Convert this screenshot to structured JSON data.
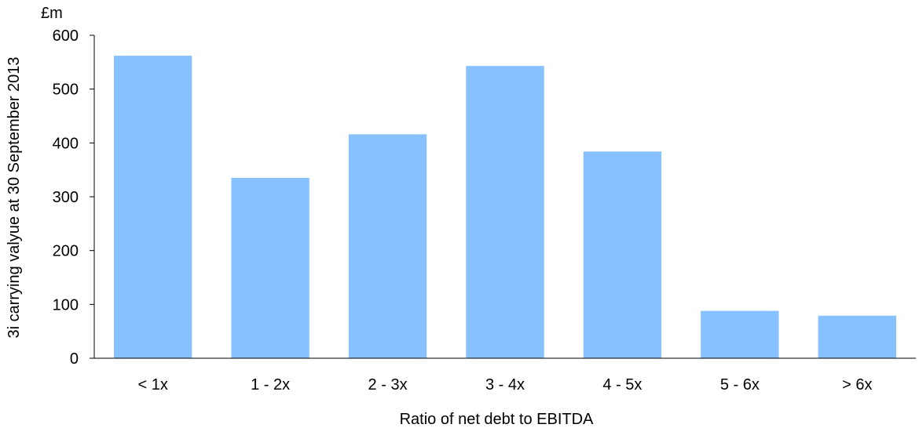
{
  "chart_data": {
    "type": "bar",
    "title": "",
    "unit": "£m",
    "xlabel": "Ratio of net debt to EBITDA",
    "ylabel": "3i carrying valyue at 30 September 2013",
    "categories": [
      "< 1x",
      "1 - 2x",
      "2 - 3x",
      "3 - 4x",
      "4 - 5x",
      "5 - 6x",
      "> 6x"
    ],
    "values": [
      562,
      335,
      416,
      543,
      384,
      88,
      79
    ],
    "ylim": [
      0,
      600
    ],
    "yticks": [
      0,
      100,
      200,
      300,
      400,
      500,
      600
    ],
    "grid": false,
    "legend": "none",
    "bar_color": "#87C1FF",
    "axis_color": "#000000"
  }
}
